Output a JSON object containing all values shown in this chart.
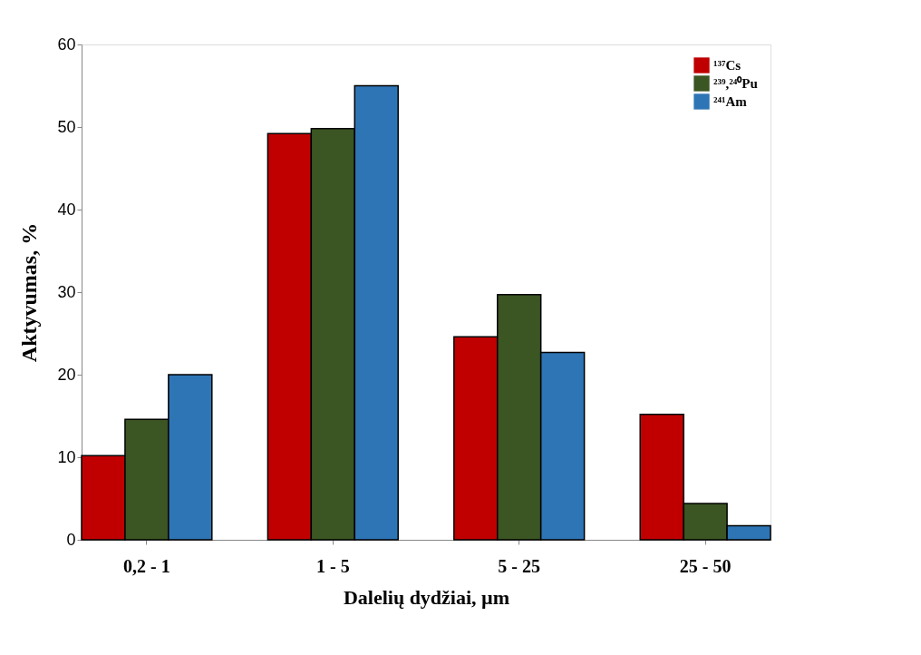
{
  "chart_data": {
    "type": "bar",
    "xlabel": "Dalelių dydžiai, µm",
    "ylabel": "Aktyvumas, %",
    "categories": [
      "0,2 - 1",
      "1 - 5",
      "5 - 25",
      "25 - 50"
    ],
    "series": [
      {
        "name": "¹³⁷Cs",
        "color": "#c00000",
        "values": [
          10.2,
          49.2,
          24.6,
          15.2
        ]
      },
      {
        "name": "²³⁹,²⁴⁰Pu",
        "color": "#3b5523",
        "values": [
          14.6,
          49.8,
          29.7,
          4.4
        ]
      },
      {
        "name": "²⁴¹Am",
        "color": "#2e75b6",
        "values": [
          20.0,
          55.0,
          22.7,
          1.7
        ]
      }
    ],
    "ylim": [
      0,
      60
    ],
    "yticks": [
      0,
      10,
      20,
      30,
      40,
      50,
      60
    ],
    "grid": false,
    "legend": "top right"
  }
}
